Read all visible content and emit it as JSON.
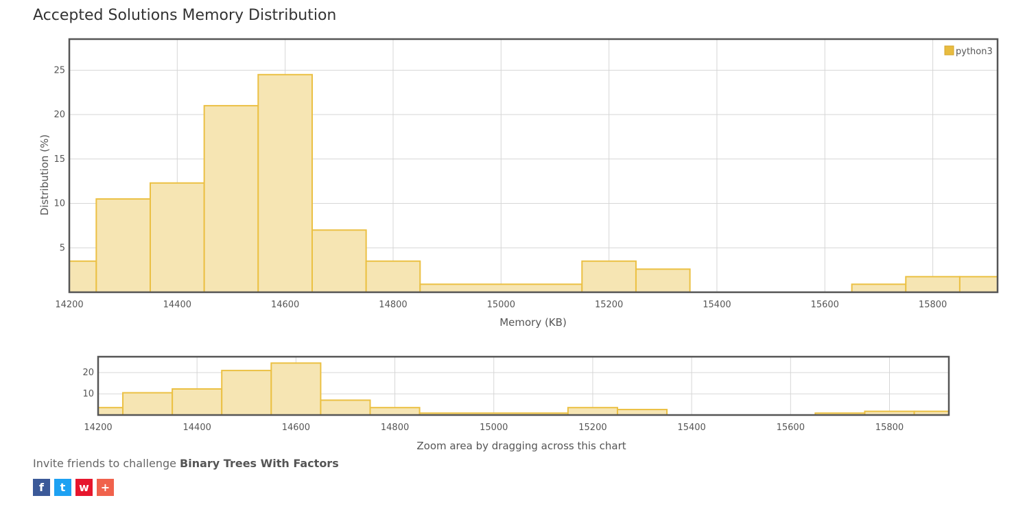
{
  "page": {
    "title": "Accepted Solutions Memory Distribution",
    "zoom_hint": "Zoom area by dragging across this chart",
    "invite_prefix": "Invite friends to challenge ",
    "invite_problem": "Binary Trees With Factors"
  },
  "share": [
    {
      "name": "facebook",
      "icon": "facebook-icon",
      "glyph": "f",
      "color": "#3b5998"
    },
    {
      "name": "twitter",
      "icon": "twitter-icon",
      "glyph": "t",
      "color": "#1da1f2"
    },
    {
      "name": "weibo",
      "icon": "weibo-icon",
      "glyph": "w",
      "color": "#e6162d"
    },
    {
      "name": "more",
      "icon": "plus-icon",
      "glyph": "+",
      "color": "#f0624c"
    }
  ],
  "chart_data": [
    {
      "type": "bar",
      "xlabel": "Memory (KB)",
      "ylabel": "Distribution (%)",
      "xlim": [
        14200,
        15920
      ],
      "ylim": [
        0,
        28.5
      ],
      "xticks": [
        14200,
        14400,
        14600,
        14800,
        15000,
        15200,
        15400,
        15600,
        15800
      ],
      "yticks": [
        5,
        10,
        15,
        20,
        25
      ],
      "grid": true,
      "legend_position": "top-right",
      "bar_fill": "#f6e5b3",
      "bar_stroke": "#ebc043",
      "legend_color": "#e8bc40",
      "series": [
        {
          "name": "python3",
          "bins": [
            {
              "x0": 14200,
              "x1": 14250,
              "value": 3.5
            },
            {
              "x0": 14250,
              "x1": 14350,
              "value": 10.5
            },
            {
              "x0": 14350,
              "x1": 14450,
              "value": 12.3
            },
            {
              "x0": 14450,
              "x1": 14550,
              "value": 21.0
            },
            {
              "x0": 14550,
              "x1": 14650,
              "value": 24.5
            },
            {
              "x0": 14650,
              "x1": 14750,
              "value": 7.0
            },
            {
              "x0": 14750,
              "x1": 14850,
              "value": 3.5
            },
            {
              "x0": 14850,
              "x1": 15150,
              "value": 0.9
            },
            {
              "x0": 15150,
              "x1": 15250,
              "value": 3.5
            },
            {
              "x0": 15250,
              "x1": 15350,
              "value": 2.6
            },
            {
              "x0": 15650,
              "x1": 15750,
              "value": 0.9
            },
            {
              "x0": 15750,
              "x1": 15850,
              "value": 1.75
            },
            {
              "x0": 15850,
              "x1": 15920,
              "value": 1.75
            }
          ]
        }
      ]
    },
    {
      "type": "bar",
      "xlim": [
        14200,
        15920
      ],
      "ylim": [
        0,
        27.5
      ],
      "xticks": [
        14200,
        14400,
        14600,
        14800,
        15000,
        15200,
        15400,
        15600,
        15800
      ],
      "yticks": [
        10,
        20
      ],
      "grid": true,
      "role": "overview"
    }
  ]
}
